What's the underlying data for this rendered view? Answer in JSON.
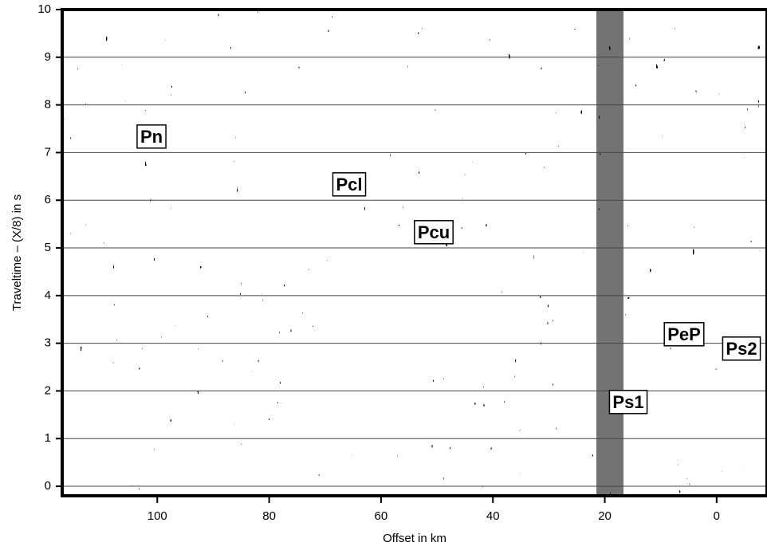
{
  "chart_data": {
    "type": "seismogram",
    "x_label": "Offset in km",
    "y_label": "Traveltime – (X/8) in s",
    "xlim": [
      117,
      -9
    ],
    "xticks": [
      100,
      80,
      60,
      40,
      20,
      0
    ],
    "ylim": [
      -0.2,
      10
    ],
    "yticks": [
      0,
      1,
      2,
      3,
      4,
      5,
      6,
      7,
      8,
      9,
      10
    ],
    "grid": true,
    "annotations": [
      "Pn",
      "Pcl",
      "Pcu",
      "PeP",
      "Ps2",
      "Ps1"
    ]
  }
}
